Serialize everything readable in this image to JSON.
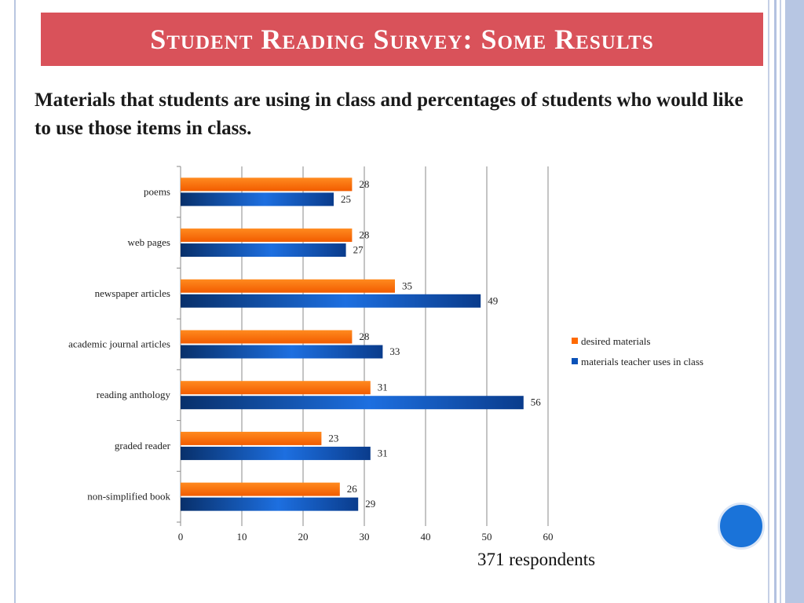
{
  "title": "Student Reading Survey: Some Results",
  "subtitle": "Materials that students are using in class and percentages of students who would like to use those items in class.",
  "footnote": "371 respondents",
  "colors": {
    "title_bar": "#d9525a",
    "desired": "#ff6a00",
    "teacher": "#0a52b8",
    "accent_dot": "#1a73d9"
  },
  "chart_data": {
    "type": "bar",
    "orientation": "horizontal",
    "categories": [
      "poems",
      "web pages",
      "newspaper articles",
      "academic journal articles",
      "reading anthology",
      "graded reader",
      "non-simplified book"
    ],
    "series": [
      {
        "name": "desired materials",
        "values": [
          28,
          28,
          35,
          28,
          31,
          23,
          26
        ]
      },
      {
        "name": "materials teacher uses in class",
        "values": [
          25,
          27,
          49,
          33,
          56,
          31,
          29
        ]
      }
    ],
    "x_ticks": [
      "0",
      "10",
      "20",
      "30",
      "40",
      "50",
      "60"
    ],
    "xlim": [
      0,
      60
    ],
    "grid": true,
    "legend": "right",
    "data_labels": true
  }
}
